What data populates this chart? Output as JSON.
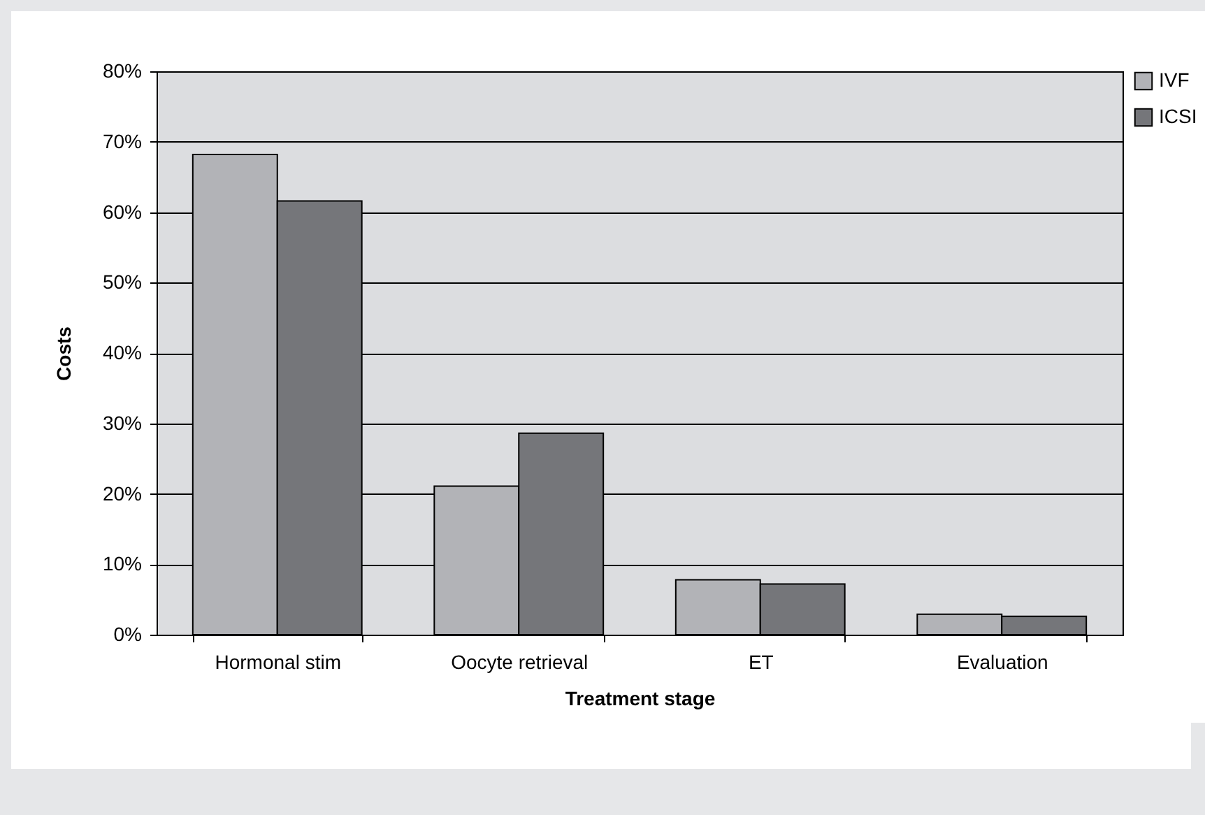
{
  "chart_data": {
    "type": "bar",
    "xlabel": "Treatment stage",
    "ylabel": "Costs",
    "categories": [
      "Hormonal stim",
      "Oocyte retrieval",
      "ET",
      "Evaluation"
    ],
    "series": [
      {
        "name": "IVF",
        "color": "#b2b3b7",
        "values": [
          68.2,
          21.1,
          7.8,
          2.9
        ]
      },
      {
        "name": "ICSI",
        "color": "#75767a",
        "values": [
          61.6,
          28.6,
          7.2,
          2.6
        ]
      }
    ],
    "ylim": [
      0,
      80
    ],
    "yticks": [
      {
        "value": 0,
        "label": "0%"
      },
      {
        "value": 10,
        "label": "10%"
      },
      {
        "value": 20,
        "label": "20%"
      },
      {
        "value": 30,
        "label": "30%"
      },
      {
        "value": 40,
        "label": "40%"
      },
      {
        "value": 50,
        "label": "50%"
      },
      {
        "value": 60,
        "label": "60%"
      },
      {
        "value": 70,
        "label": "70%"
      },
      {
        "value": 80,
        "label": "80%"
      }
    ],
    "grid": "y",
    "legend": "right"
  }
}
